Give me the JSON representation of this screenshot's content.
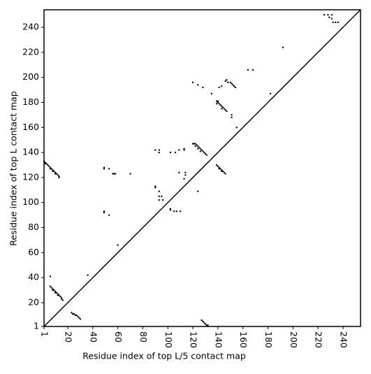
{
  "chart_data": {
    "type": "scatter",
    "xlabel": "Residue index of top L/5 contact map",
    "ylabel": "Residue index of top L contact map",
    "xlim": [
      1,
      254
    ],
    "ylim": [
      1,
      254
    ],
    "xticks": [
      1,
      20,
      40,
      60,
      80,
      100,
      120,
      140,
      160,
      180,
      200,
      220,
      240
    ],
    "yticks": [
      1,
      20,
      40,
      60,
      80,
      100,
      120,
      140,
      160,
      180,
      200,
      220,
      240
    ],
    "color": "#000000",
    "x": [
      1,
      2,
      3,
      4,
      5,
      6,
      7,
      8,
      9,
      10,
      11,
      12,
      13,
      13,
      2,
      6,
      8,
      10,
      6,
      7,
      8,
      9,
      10,
      11,
      12,
      13,
      14,
      15,
      15,
      16,
      8,
      10,
      12,
      23,
      24,
      25,
      26,
      27,
      28,
      29,
      30,
      225,
      228,
      231,
      229,
      231,
      232,
      234,
      236,
      120,
      121,
      122,
      123,
      124,
      125,
      126,
      127,
      128,
      129,
      130,
      131,
      122,
      124,
      126,
      139,
      140,
      140,
      141,
      142,
      143,
      144,
      145,
      146,
      147,
      139,
      143,
      139,
      140,
      141,
      142,
      143,
      144,
      145,
      146,
      141,
      143,
      146,
      147,
      148,
      150,
      151,
      152,
      153,
      154,
      143,
      141,
      120,
      124,
      128,
      164,
      168,
      192,
      182,
      135,
      151,
      151,
      155,
      49,
      49,
      53,
      56,
      57,
      58,
      70,
      90,
      90,
      93,
      93,
      95,
      93,
      96,
      49,
      49,
      53,
      102,
      102,
      105,
      107,
      110,
      90,
      93,
      93,
      102,
      106,
      109,
      113,
      113,
      109,
      114,
      114,
      113,
      124,
      60,
      6,
      36,
      127,
      128,
      129,
      130,
      131,
      132
    ],
    "y": [
      133,
      132,
      131,
      130,
      129,
      128,
      127,
      126,
      125,
      124,
      123,
      122,
      121,
      120,
      131,
      127,
      125,
      123,
      33,
      32,
      31,
      30,
      29,
      28,
      27,
      26,
      25,
      24,
      23,
      22,
      30,
      28,
      26,
      12,
      11,
      11,
      10,
      10,
      9,
      8,
      7,
      250,
      250,
      250,
      248,
      247,
      244,
      244,
      244,
      147,
      147,
      147,
      146,
      145,
      144,
      143,
      142,
      141,
      140,
      139,
      138,
      145,
      143,
      141,
      181,
      181,
      180,
      179,
      178,
      177,
      176,
      175,
      174,
      173,
      179,
      175,
      130,
      129,
      128,
      127,
      126,
      125,
      124,
      123,
      127,
      125,
      197,
      198,
      196,
      196,
      195,
      194,
      193,
      192,
      193,
      192,
      196,
      194,
      192,
      206,
      206,
      224,
      187,
      187,
      168,
      170,
      160,
      128,
      127,
      127,
      123,
      123,
      123,
      123,
      113,
      112,
      109,
      105,
      105,
      102,
      102,
      93,
      92,
      90,
      95,
      94,
      93,
      93,
      93,
      142,
      142,
      140,
      140,
      140,
      142,
      143,
      142,
      124,
      124,
      122,
      119,
      109,
      66,
      41,
      42,
      6,
      5,
      4,
      3,
      2,
      2
    ]
  }
}
